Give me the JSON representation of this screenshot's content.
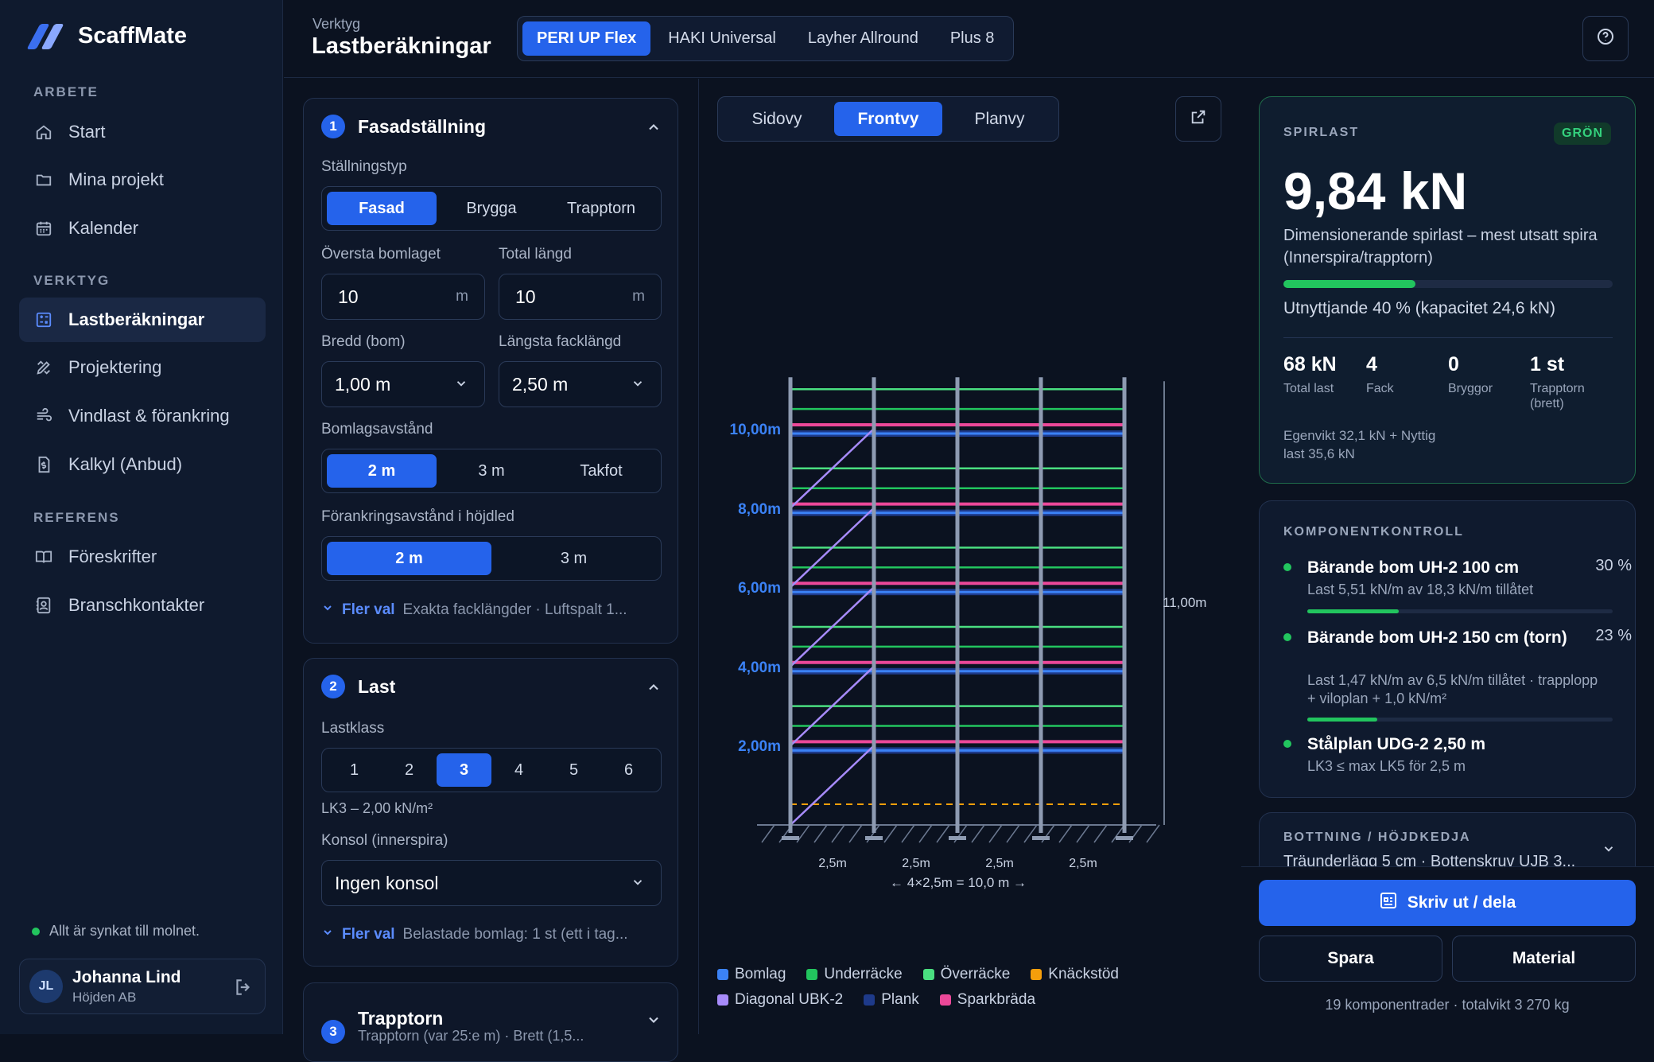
{
  "app": {
    "name": "ScaffMate"
  },
  "sidebar": {
    "sections": [
      "ARBETE",
      "VERKTYG",
      "REFERENS"
    ],
    "items": [
      {
        "label": "Start",
        "icon": "home-icon"
      },
      {
        "label": "Mina projekt",
        "icon": "folder-icon"
      },
      {
        "label": "Kalender",
        "icon": "calendar-icon"
      },
      {
        "label": "Lastberäkningar",
        "icon": "calculator-icon"
      },
      {
        "label": "Projektering",
        "icon": "pencil-ruler-icon"
      },
      {
        "label": "Vindlast & förankring",
        "icon": "wind-icon"
      },
      {
        "label": "Kalkyl (Anbud)",
        "icon": "document-dollar-icon"
      },
      {
        "label": "Föreskrifter",
        "icon": "book-icon"
      },
      {
        "label": "Branschkontakter",
        "icon": "contacts-icon"
      }
    ],
    "sync": "Allt är synkat till molnet.",
    "user": {
      "initials": "JL",
      "name": "Johanna Lind",
      "org": "Höjden AB"
    }
  },
  "header": {
    "small": "Verktyg",
    "title": "Lastberäkningar",
    "systems": [
      "PERI UP Flex",
      "HAKI Universal",
      "Layher Allround",
      "Plus 8"
    ]
  },
  "form": {
    "s1": {
      "num": "1",
      "title": "Fasadställning",
      "type_label": "Ställningstyp",
      "types": [
        "Fasad",
        "Brygga",
        "Trapptorn"
      ],
      "top_label": "Översta bomlaget",
      "top_value": "10",
      "top_unit": "m",
      "len_label": "Total längd",
      "len_value": "10",
      "len_unit": "m",
      "width_label": "Bredd (bom)",
      "width_value": "1,00 m",
      "bay_label": "Längsta facklängd",
      "bay_value": "2,50 m",
      "spacing_label": "Bomlagsavstånd",
      "spacings": [
        "2 m",
        "3 m",
        "Takfot"
      ],
      "anchor_label": "Förankringsavstånd i höjdled",
      "anchors": [
        "2 m",
        "3 m"
      ],
      "more_link": "Fler val",
      "more_desc": "Exakta facklängder · Luftspalt 1..."
    },
    "s2": {
      "num": "2",
      "title": "Last",
      "class_label": "Lastklass",
      "classes": [
        "1",
        "2",
        "3",
        "4",
        "5",
        "6"
      ],
      "class_help": "LK3 – 2,00 kN/m²",
      "console_label": "Konsol (innerspira)",
      "console_value": "Ingen konsol",
      "more_link": "Fler val",
      "more_desc": "Belastade bomlag: 1 st (ett i tag..."
    },
    "s3": {
      "num": "3",
      "title": "Trapptorn",
      "sub": "Trapptorn (var 25:e m) · Brett (1,5..."
    }
  },
  "center": {
    "views": [
      "Sidovy",
      "Frontvy",
      "Planvy"
    ],
    "levels": [
      "10,00m",
      "8,00m",
      "6,00m",
      "4,00m",
      "2,00m"
    ],
    "height_dim": "11,00m",
    "bay_labels": [
      "2,5m",
      "2,5m",
      "2,5m",
      "2,5m"
    ],
    "total_dim": "← 4×2,5m = 10,0 m →",
    "legend": [
      {
        "label": "Bomlag",
        "color": "#3b82f6"
      },
      {
        "label": "Underräcke",
        "color": "#22c55e"
      },
      {
        "label": "Överräcke",
        "color": "#4ade80"
      },
      {
        "label": "Knäckstöd",
        "color": "#f59e0b"
      },
      {
        "label": "Diagonal UBK-2",
        "color": "#a78bfa"
      },
      {
        "label": "Plank",
        "color": "#1e3a8a"
      },
      {
        "label": "Sparkbräda",
        "color": "#ec4899"
      }
    ]
  },
  "result": {
    "caption": "SPIRLAST",
    "badge": "GRÖN",
    "value": "9,84 kN",
    "desc": "Dimensionerande spirlast – mest utsatt spira (Innerspira/trapptorn)",
    "utilization": 0.4,
    "util_text": "Utnyttjande 40 % (kapacitet 24,6 kN)",
    "stats": [
      {
        "value": "68 kN",
        "label": "Total last"
      },
      {
        "value": "4",
        "label": "Fack"
      },
      {
        "value": "0",
        "label": "Bryggor"
      },
      {
        "value": "1 st",
        "label": "Trapptorn (brett)"
      }
    ],
    "egen": "Egenvikt 32,1 kN + Nyttig last 35,6 kN"
  },
  "components": {
    "caption": "KOMPONENTKONTROLL",
    "items": [
      {
        "title": "Bärande bom UH-2 100 cm",
        "pct": "30 %",
        "util": 0.3,
        "sub": "Last 5,51 kN/m av 18,3 kN/m tillåtet"
      },
      {
        "title": "Bärande bom UH-2 150 cm (torn)",
        "pct": "23 %",
        "util": 0.23,
        "sub": "Last 1,47 kN/m av 6,5 kN/m tillåtet · trapplopp + viloplan + 1,0 kN/m²"
      },
      {
        "title": "Stålplan UDG-2 2,50 m",
        "sub": "LK3 ≤ max LK5 för 2,5 m"
      }
    ]
  },
  "bottning": {
    "caption": "BOTTNING / HÖJDKEDJA",
    "sub": "Träunderlägg 5 cm · Bottenskruv UJB 3..."
  },
  "actions": {
    "primary": "Skriv ut / dela",
    "save": "Spara",
    "material": "Material",
    "summary": "19 komponentrader · totalvikt 3 270 kg"
  }
}
